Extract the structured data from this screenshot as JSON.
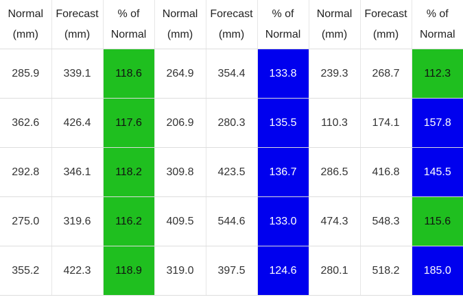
{
  "colors": {
    "above_normal_green": "#1fbf1f",
    "well_above_normal_blue": "#0000ee"
  },
  "table": {
    "headers": [
      {
        "line1": "Normal",
        "line2": "(mm)"
      },
      {
        "line1": "Forecast",
        "line2": "(mm)"
      },
      {
        "line1": "% of",
        "line2": "Normal"
      },
      {
        "line1": "Normal",
        "line2": "(mm)"
      },
      {
        "line1": "Forecast",
        "line2": "(mm)"
      },
      {
        "line1": "% of",
        "line2": "Normal"
      },
      {
        "line1": "Normal",
        "line2": "(mm)"
      },
      {
        "line1": "Forecast",
        "line2": "(mm)"
      },
      {
        "line1": "% of",
        "line2": "Normal"
      }
    ],
    "rows": [
      {
        "cells": [
          {
            "value": "285.9",
            "color": ""
          },
          {
            "value": "339.1",
            "color": ""
          },
          {
            "value": "118.6",
            "color": "green"
          },
          {
            "value": "264.9",
            "color": ""
          },
          {
            "value": "354.4",
            "color": ""
          },
          {
            "value": "133.8",
            "color": "blue"
          },
          {
            "value": "239.3",
            "color": ""
          },
          {
            "value": "268.7",
            "color": ""
          },
          {
            "value": "112.3",
            "color": "green"
          }
        ]
      },
      {
        "cells": [
          {
            "value": "362.6",
            "color": ""
          },
          {
            "value": "426.4",
            "color": ""
          },
          {
            "value": "117.6",
            "color": "green"
          },
          {
            "value": "206.9",
            "color": ""
          },
          {
            "value": "280.3",
            "color": ""
          },
          {
            "value": "135.5",
            "color": "blue"
          },
          {
            "value": "110.3",
            "color": ""
          },
          {
            "value": "174.1",
            "color": ""
          },
          {
            "value": "157.8",
            "color": "blue"
          }
        ]
      },
      {
        "cells": [
          {
            "value": "292.8",
            "color": ""
          },
          {
            "value": "346.1",
            "color": ""
          },
          {
            "value": "118.2",
            "color": "green"
          },
          {
            "value": "309.8",
            "color": ""
          },
          {
            "value": "423.5",
            "color": ""
          },
          {
            "value": "136.7",
            "color": "blue"
          },
          {
            "value": "286.5",
            "color": ""
          },
          {
            "value": "416.8",
            "color": ""
          },
          {
            "value": "145.5",
            "color": "blue"
          }
        ]
      },
      {
        "cells": [
          {
            "value": "275.0",
            "color": ""
          },
          {
            "value": "319.6",
            "color": ""
          },
          {
            "value": "116.2",
            "color": "green"
          },
          {
            "value": "409.5",
            "color": ""
          },
          {
            "value": "544.6",
            "color": ""
          },
          {
            "value": "133.0",
            "color": "blue"
          },
          {
            "value": "474.3",
            "color": ""
          },
          {
            "value": "548.3",
            "color": ""
          },
          {
            "value": "115.6",
            "color": "green"
          }
        ]
      },
      {
        "cells": [
          {
            "value": "355.2",
            "color": ""
          },
          {
            "value": "422.3",
            "color": ""
          },
          {
            "value": "118.9",
            "color": "green"
          },
          {
            "value": "319.0",
            "color": ""
          },
          {
            "value": "397.5",
            "color": ""
          },
          {
            "value": "124.6",
            "color": "blue"
          },
          {
            "value": "280.1",
            "color": ""
          },
          {
            "value": "518.2",
            "color": ""
          },
          {
            "value": "185.0",
            "color": "blue"
          }
        ]
      }
    ]
  }
}
